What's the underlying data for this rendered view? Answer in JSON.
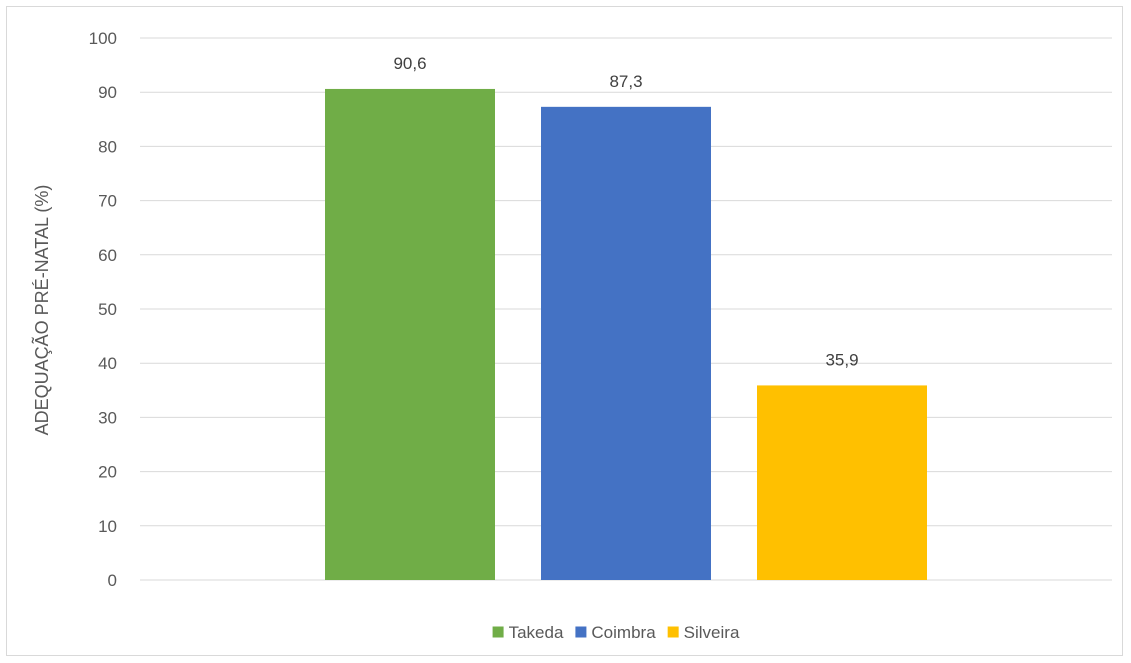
{
  "chart_data": {
    "type": "bar",
    "title": "",
    "xlabel": "",
    "ylabel": "ADEQUAÇÃO PRÉ-NATAL (%)",
    "ylim": [
      0,
      100
    ],
    "yticks": [
      0,
      10,
      20,
      30,
      40,
      50,
      60,
      70,
      80,
      90,
      100
    ],
    "grid": true,
    "legend_position": "bottom",
    "series": [
      {
        "name": "Takeda",
        "value": 90.6,
        "label": "90,6",
        "color": "#70ad47"
      },
      {
        "name": "Coimbra",
        "value": 87.3,
        "label": "87,3",
        "color": "#4472c4"
      },
      {
        "name": "Silveira",
        "value": 35.9,
        "label": "35,9",
        "color": "#ffc000"
      }
    ]
  }
}
